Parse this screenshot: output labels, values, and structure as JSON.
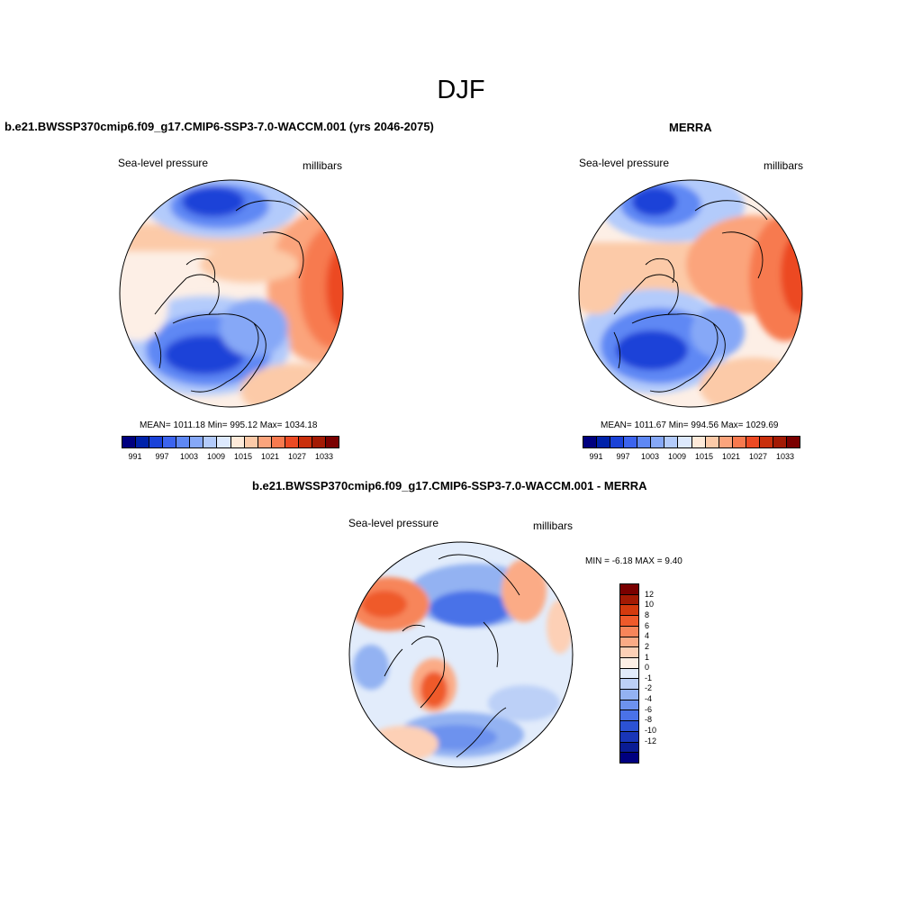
{
  "season": "DJF",
  "units": "millibars",
  "variable": "Sea-level pressure",
  "colors": {
    "abs_palette": [
      "#00007f",
      "#0022aa",
      "#1a42d8",
      "#3c64ee",
      "#5f88f4",
      "#86a8f7",
      "#b3cbfb",
      "#dde9fd",
      "#feead9",
      "#fccaa8",
      "#fba47c",
      "#f77a4f",
      "#ec4a24",
      "#c92f0c",
      "#a31a04",
      "#7a0000"
    ],
    "diff_palette": [
      "#7a0000",
      "#a31a04",
      "#d43a0e",
      "#ef5a2b",
      "#f7855a",
      "#fbab86",
      "#fdd0b6",
      "#fdefe6",
      "#e2ecfb",
      "#bcd0f7",
      "#93b2f2",
      "#6d92ee",
      "#4a72e8",
      "#2c52d4",
      "#1936b8",
      "#0a1c94",
      "#00007f"
    ]
  },
  "panels": {
    "model": {
      "title": "b.e21.BWSSP370cmip6.f09_g17.CMIP6-SSP3-7.0-WACCM.001 (yrs 2046-2075)",
      "stats": "MEAN= 1011.18   Min= 995.12   Max= 1034.18",
      "ticks": [
        "991",
        "997",
        "1003",
        "1009",
        "1015",
        "1021",
        "1027",
        "1033"
      ]
    },
    "obs": {
      "title": "MERRA",
      "stats": "MEAN= 1011.67   Min= 994.56   Max= 1029.69",
      "ticks": [
        "991",
        "997",
        "1003",
        "1009",
        "1015",
        "1021",
        "1027",
        "1033"
      ]
    },
    "diff": {
      "title": "b.e21.BWSSP370cmip6.f09_g17.CMIP6-SSP3-7.0-WACCM.001 - MERRA",
      "stats": "MIN =  -6.18 MAX =   9.40",
      "ticks": [
        "12",
        "10",
        "8",
        "6",
        "4",
        "2",
        "1",
        "0",
        "-1",
        "-2",
        "-4",
        "-6",
        "-8",
        "-10",
        "-12"
      ]
    }
  }
}
